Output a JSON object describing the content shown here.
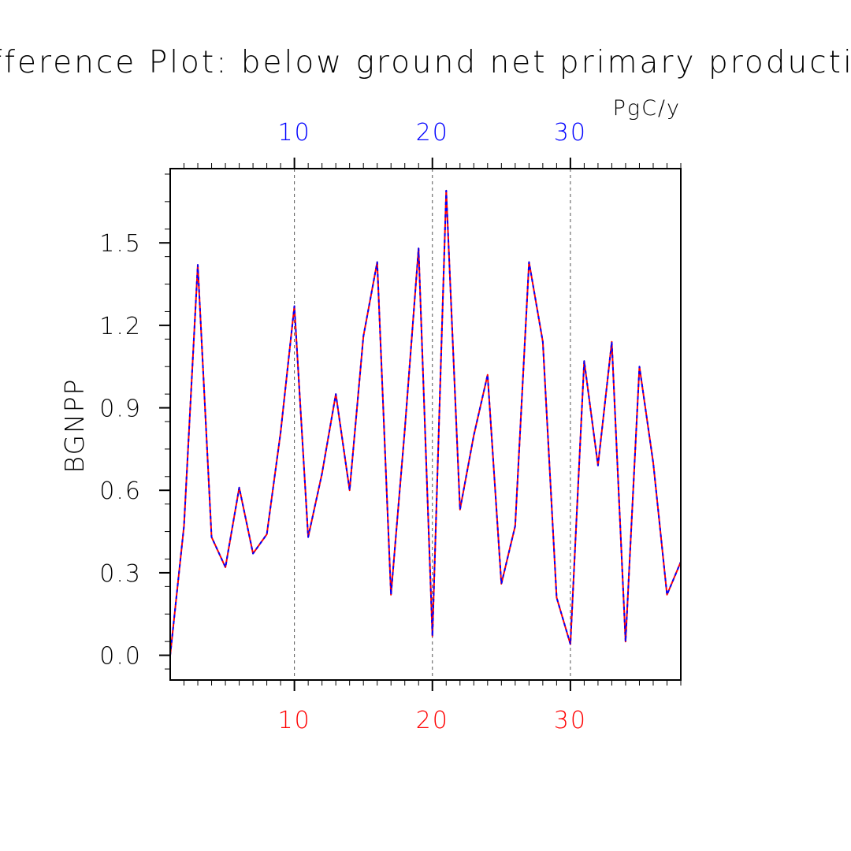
{
  "chart_data": {
    "type": "line",
    "title": "Difference Plot: below ground net primary production",
    "units": "PgC/y",
    "ylabel": "BGNPP",
    "xlabel": "",
    "xlim": [
      1,
      38
    ],
    "ylim": [
      -0.09,
      1.77
    ],
    "yticks": [
      0.0,
      0.3,
      0.6,
      0.9,
      1.2,
      1.5
    ],
    "ytick_labels": [
      "0.0",
      "0.3",
      "0.6",
      "0.9",
      "1.2",
      "1.5"
    ],
    "xticks_bottom": [
      10,
      20,
      30
    ],
    "xtick_labels_bottom": [
      "10",
      "20",
      "30"
    ],
    "xticks_top": [
      10,
      20,
      30
    ],
    "xtick_labels_top": [
      "10",
      "20",
      "30"
    ],
    "grid": "vertical dashed at 10, 20, 30",
    "legend": "none",
    "x": [
      1,
      2,
      3,
      4,
      5,
      6,
      7,
      8,
      9,
      10,
      11,
      12,
      13,
      14,
      15,
      16,
      17,
      18,
      19,
      20,
      21,
      22,
      23,
      24,
      25,
      26,
      27,
      28,
      29,
      30,
      31,
      32,
      33,
      34,
      35,
      36,
      37,
      38
    ],
    "series": [
      {
        "color": "#ff0000",
        "style": "solid",
        "values": [
          0.0,
          0.47,
          1.42,
          0.43,
          0.32,
          0.61,
          0.37,
          0.44,
          0.81,
          1.27,
          0.43,
          0.66,
          0.95,
          0.6,
          1.16,
          1.43,
          0.22,
          0.82,
          1.48,
          0.07,
          1.69,
          0.53,
          0.8,
          1.02,
          0.26,
          0.47,
          1.43,
          1.14,
          0.21,
          0.04,
          1.07,
          0.69,
          1.14,
          0.05,
          1.05,
          0.7,
          0.22,
          0.34
        ]
      },
      {
        "color": "#0000ff",
        "style": "dashed",
        "values": [
          0.0,
          0.47,
          1.42,
          0.43,
          0.32,
          0.61,
          0.37,
          0.44,
          0.81,
          1.27,
          0.43,
          0.66,
          0.95,
          0.6,
          1.16,
          1.43,
          0.22,
          0.82,
          1.48,
          0.07,
          1.69,
          0.53,
          0.8,
          1.02,
          0.26,
          0.47,
          1.43,
          1.14,
          0.21,
          0.04,
          1.07,
          0.69,
          1.14,
          0.05,
          1.05,
          0.7,
          0.22,
          0.34
        ]
      }
    ],
    "colors": {
      "bottom_axis_labels": "#ff0000",
      "top_axis_labels": "#0000ff",
      "axis": "#000000",
      "grid": "#555555"
    }
  }
}
